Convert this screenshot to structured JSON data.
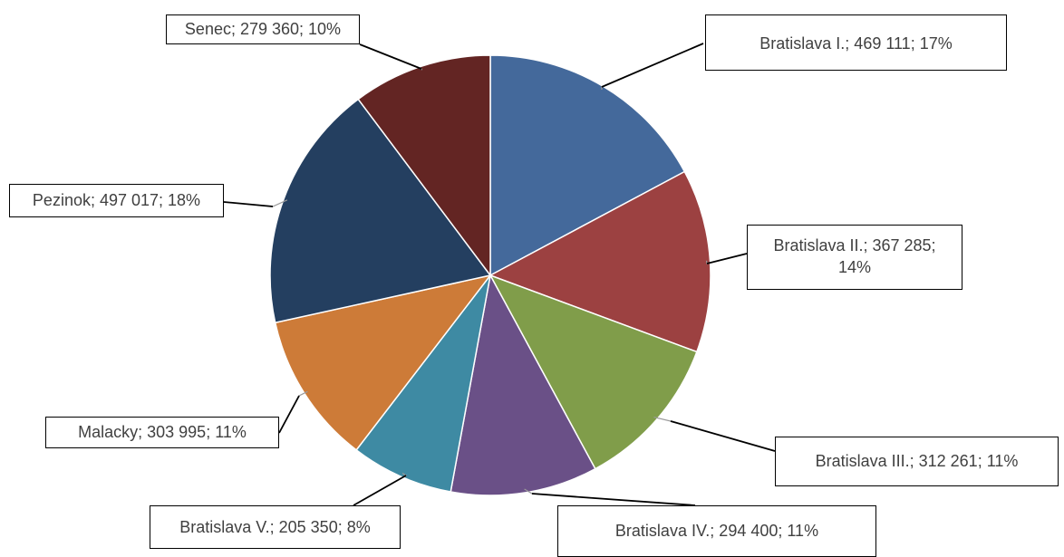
{
  "chart_data": {
    "type": "pie",
    "start_angle_deg": 0,
    "direction": "clockwise",
    "slices": [
      {
        "name": "Bratislava I.",
        "value": 469111,
        "percent": 17,
        "label": "Bratislava I.; 469 111; 17%",
        "color": "#44699b"
      },
      {
        "name": "Bratislava II.",
        "value": 367285,
        "percent": 14,
        "label": "Bratislava II.; 367 285; 14%",
        "color": "#9c4141"
      },
      {
        "name": "Bratislava III.",
        "value": 312261,
        "percent": 11,
        "label": "Bratislava III.; 312 261; 11%",
        "color": "#809d4a"
      },
      {
        "name": "Bratislava IV.",
        "value": 294400,
        "percent": 11,
        "label": "Bratislava IV.; 294 400; 11%",
        "color": "#6a5087"
      },
      {
        "name": "Bratislava V.",
        "value": 205350,
        "percent": 8,
        "label": "Bratislava V.; 205 350; 8%",
        "color": "#3e8aa3"
      },
      {
        "name": "Malacky",
        "value": 303995,
        "percent": 11,
        "label": "Malacky; 303 995; 11%",
        "color": "#cd7b38"
      },
      {
        "name": "Pezinok",
        "value": 497017,
        "percent": 18,
        "label": "Pezinok; 497 017; 18%",
        "color": "#243f60"
      },
      {
        "name": "Senec",
        "value": 279360,
        "percent": 10,
        "label": "Senec; 279 360; 10%",
        "color": "#632523"
      }
    ]
  }
}
